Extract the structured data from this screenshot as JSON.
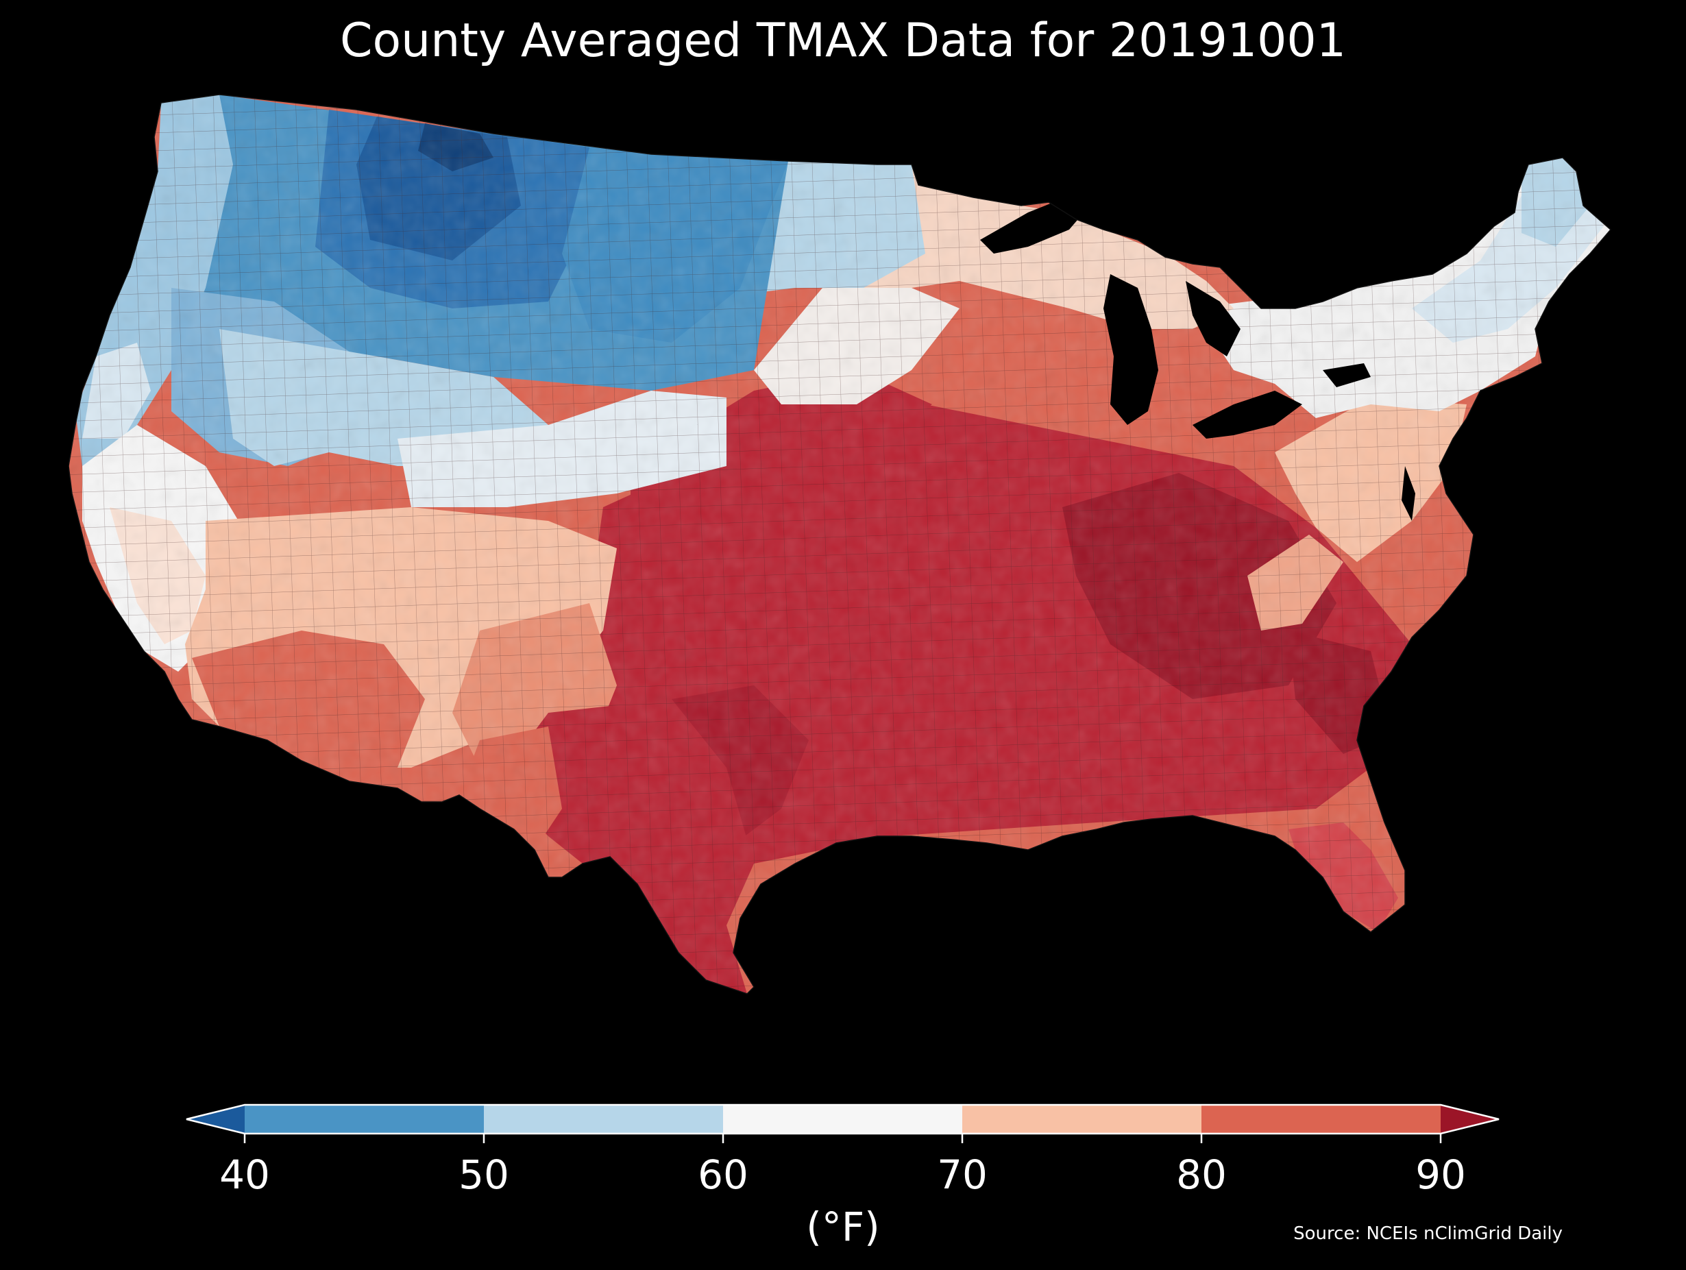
{
  "title": "County Averaged TMAX Data for 20191001",
  "colorbar": {
    "ticks": [
      "40",
      "50",
      "60",
      "70",
      "80",
      "90"
    ],
    "unit": "(°F)",
    "colors": {
      "below_40": "#1b5a9c",
      "b40_50": "#4a94c5",
      "b50_60": "#b6d6e9",
      "b60_70": "#f6f6f6",
      "b70_80": "#f8c1a5",
      "b80_90": "#dc6451",
      "above_90": "#9b1527"
    }
  },
  "source": "Source: NCEIs nClimGrid Daily",
  "map": {
    "region": "contiguous-united-states",
    "variable": "TMAX",
    "date": "20191001",
    "regional_levels": [
      {
        "region": "northern-rockies-montana",
        "band": "below_40"
      },
      {
        "region": "pacific-northwest-interior",
        "band": "b40_50"
      },
      {
        "region": "great-basin-north",
        "band": "b40_50"
      },
      {
        "region": "pacific-coast-north",
        "band": "b50_60"
      },
      {
        "region": "dakotas-minnesota",
        "band": "b50_60"
      },
      {
        "region": "colorado-nebraska",
        "band": "b60_70"
      },
      {
        "region": "new-england-great-lakes",
        "band": "b60_70"
      },
      {
        "region": "california-coast",
        "band": "b60_70"
      },
      {
        "region": "southwest-new-mexico",
        "band": "b70_80"
      },
      {
        "region": "arizona-low-desert",
        "band": "b80_90"
      },
      {
        "region": "texas-panhandle-west",
        "band": "b80_90"
      },
      {
        "region": "south-central-midwest",
        "band": "above_90"
      },
      {
        "region": "southeast",
        "band": "above_90"
      },
      {
        "region": "florida-gulf-coast",
        "band": "b80_90"
      }
    ]
  }
}
